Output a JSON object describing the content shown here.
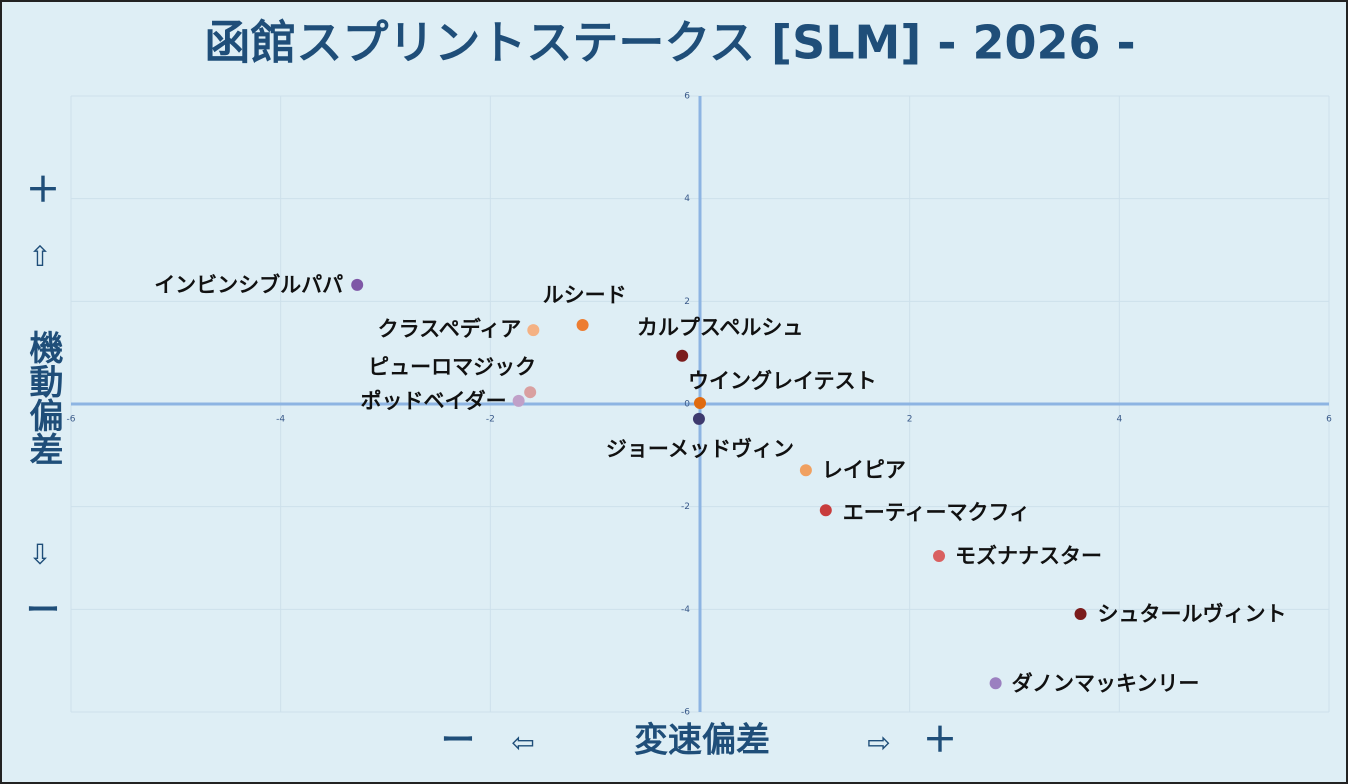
{
  "chart_data": {
    "type": "scatter",
    "title": "函館スプリントステークス [SLM]  - 2026 -",
    "xlabel": "変速偏差",
    "x_minus": "ー",
    "x_minus_arrow": "⇦",
    "x_plus_arrow": "⇨",
    "x_plus": "＋",
    "ylabel": "機動偏差",
    "y_plus": "＋",
    "y_plus_arrow": "⇧",
    "y_minus_arrow": "⇩",
    "y_minus": "ー",
    "xlim": [
      -6,
      6
    ],
    "ylim": [
      -6,
      6
    ],
    "xticks": [
      -6,
      -4,
      -2,
      0,
      2,
      4,
      6
    ],
    "yticks": [
      -6,
      -4,
      -2,
      0,
      2,
      4,
      6
    ],
    "grid": true,
    "series": [
      {
        "name": "インビンシブルパパ",
        "color": "#7e57a6",
        "x": [
          -3.27
        ],
        "values": [
          2.32
        ]
      },
      {
        "name": "ルシード",
        "color": "#ed7d31",
        "x": [
          -1.12
        ],
        "values": [
          1.54
        ]
      },
      {
        "name": "クラスペディア",
        "color": "#f4b183",
        "x": [
          -1.59
        ],
        "values": [
          1.44
        ]
      },
      {
        "name": "カルプスペルシュ",
        "color": "#7b1c1c",
        "x": [
          -0.17
        ],
        "values": [
          0.94
        ]
      },
      {
        "name": "ピューロマジック",
        "color": "#d9a0a0",
        "x": [
          -1.62
        ],
        "values": [
          0.23
        ]
      },
      {
        "name": "ポッドベイダー",
        "color": "#c0a0c8",
        "x": [
          -1.73
        ],
        "values": [
          0.06
        ]
      },
      {
        "name": "ウイングレイテスト",
        "color": "#e06b10",
        "x": [
          0.0
        ],
        "values": [
          0.02
        ]
      },
      {
        "name": "ジョーメッドヴィン",
        "color": "#3e3a6e",
        "x": [
          -0.01
        ],
        "values": [
          -0.29
        ]
      },
      {
        "name": "レイピア",
        "color": "#f0a060",
        "x": [
          1.01
        ],
        "values": [
          -1.29
        ]
      },
      {
        "name": "エーティーマクフィ",
        "color": "#c83c3c",
        "x": [
          1.2
        ],
        "values": [
          -2.07
        ]
      },
      {
        "name": "モズナナスター",
        "color": "#d96060",
        "x": [
          2.28
        ],
        "values": [
          -2.96
        ]
      },
      {
        "name": "シュタールヴィント",
        "color": "#7b1c1c",
        "x": [
          3.63
        ],
        "values": [
          -4.09
        ]
      },
      {
        "name": "ダノンマッキンリー",
        "color": "#9b80c0",
        "x": [
          2.82
        ],
        "values": [
          -5.44
        ]
      }
    ]
  }
}
